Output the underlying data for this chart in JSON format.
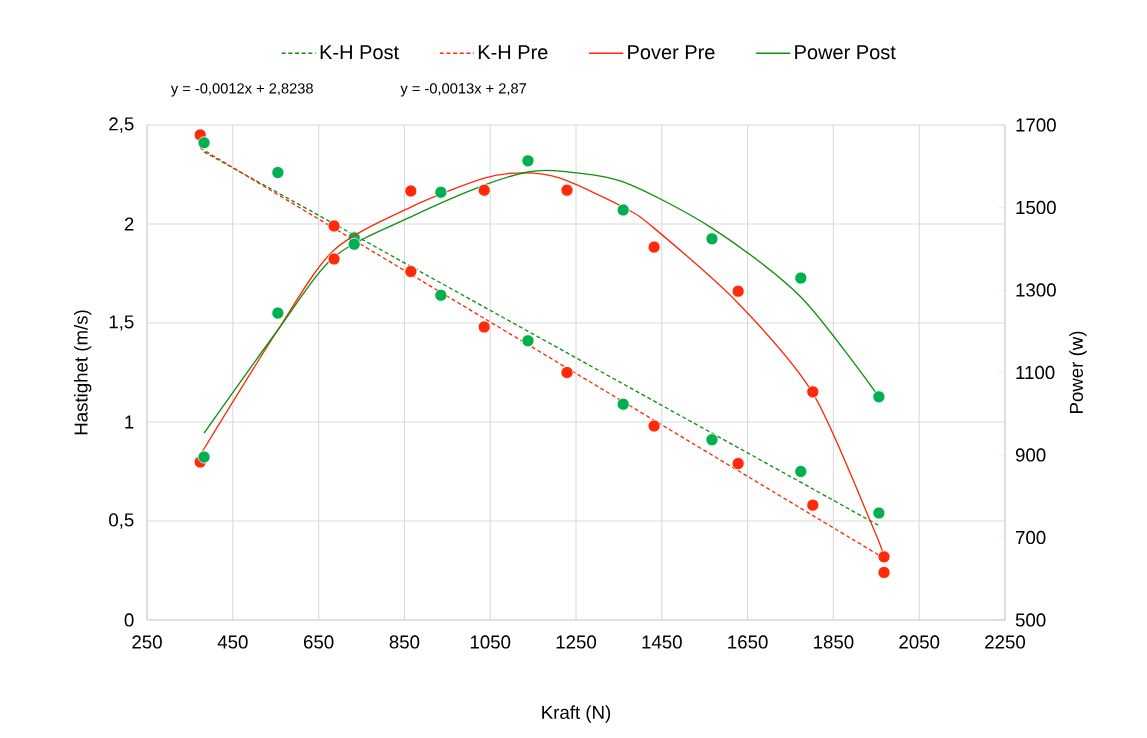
{
  "chart_data": {
    "type": "scatter",
    "xlabel": "Kraft (N)",
    "ylabel": "Hastighet (m/s)",
    "y2label": "Power (w)",
    "xlim": [
      250,
      2250
    ],
    "xticks": [
      250,
      450,
      650,
      850,
      1050,
      1250,
      1450,
      1650,
      1850,
      2050,
      2250
    ],
    "ylim": [
      0,
      2.5
    ],
    "yticks": [
      0,
      {
        "value": 0.5,
        "label": "0,5"
      },
      1,
      {
        "value": 1.5,
        "label": "1,5"
      },
      2,
      {
        "value": 2.5,
        "label": "2,5"
      }
    ],
    "y2lim": [
      500,
      1700
    ],
    "y2ticks": [
      500,
      700,
      900,
      1100,
      1300,
      1500,
      1700
    ],
    "grid": true,
    "legend": "top",
    "annotations": [
      "y = -0,0012x + 2,8238",
      "y = -0,0013x + 2,87"
    ],
    "series": [
      {
        "name": "K-H Post",
        "type": "line",
        "line_style": "dashed",
        "marker": "none",
        "color": "#109010",
        "x": [
          383,
          1956
        ],
        "values": [
          2.364,
          0.477
        ]
      },
      {
        "name": "K-H Pre",
        "type": "line",
        "line_style": "dashed",
        "marker": "none",
        "color": "#ff2a0a",
        "x": [
          374,
          1968
        ],
        "values": [
          2.384,
          0.312
        ]
      },
      {
        "name": "Pover Pre",
        "type": "line",
        "line_style": "solid",
        "marker": "none",
        "axis": "y2",
        "color": "#ff2a0a",
        "x": [
          374,
          555,
          686,
          865,
          1036,
          1126,
          1213,
          1360,
          1432,
          1628,
          1802,
          1942,
          1968
        ],
        "values": [
          900,
          1203,
          1397,
          1501,
          1571,
          1584,
          1571,
          1501,
          1450,
          1268,
          1050,
          725,
          653
        ]
      },
      {
        "name": "Power Post",
        "type": "line",
        "line_style": "solid",
        "marker": "none",
        "axis": "y2",
        "color": "#109010",
        "x": [
          383,
          555,
          686,
          865,
          1036,
          1138,
          1213,
          1360,
          1567,
          1774,
          1956
        ],
        "values": [
          953,
          1203,
          1380,
          1477,
          1554,
          1586,
          1588,
          1562,
          1450,
          1283,
          1041
        ]
      },
      {
        "marker": "circle",
        "color": "#ff2a0a",
        "x": [
          374,
          686,
          865,
          1036,
          1229,
          1432,
          1628,
          1802,
          1968
        ],
        "values": [
          2.45,
          1.99,
          1.76,
          1.48,
          1.25,
          0.98,
          0.79,
          0.58,
          0.24
        ]
      },
      {
        "marker": "circle",
        "color": "#00b050",
        "x": [
          383,
          555,
          733,
          935,
          1138,
          1360,
          1567,
          1774,
          1956
        ],
        "values": [
          2.41,
          2.26,
          1.93,
          1.64,
          1.41,
          1.09,
          0.91,
          0.75,
          0.54
        ]
      },
      {
        "marker": "circle",
        "axis": "y2",
        "color": "#ff2a0a",
        "x": [
          374,
          686,
          865,
          1036,
          1229,
          1432,
          1628,
          1802,
          1968
        ],
        "values": [
          883,
          1375,
          1540,
          1542,
          1542,
          1404,
          1297,
          1053,
          653
        ]
      },
      {
        "marker": "circle",
        "axis": "y2",
        "color": "#00b050",
        "x": [
          383,
          555,
          733,
          935,
          1138,
          1360,
          1567,
          1774,
          1956
        ],
        "values": [
          895,
          1244,
          1411,
          1537,
          1613,
          1494,
          1424,
          1329,
          1041
        ]
      }
    ]
  }
}
